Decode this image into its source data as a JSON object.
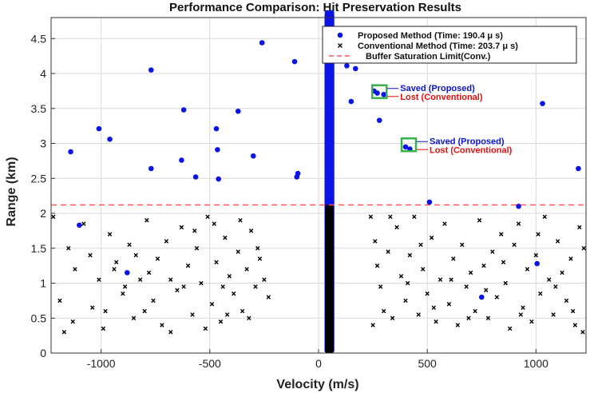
{
  "chart_data": {
    "type": "scatter",
    "title": "Performance Comparison: Hit Preservation Results",
    "xlabel": "Velocity (m/s)",
    "ylabel": "Range (km)",
    "xlim": [
      -1230,
      1230
    ],
    "ylim": [
      0,
      4.8
    ],
    "xticks": [
      -1000,
      -500,
      0,
      500,
      1000
    ],
    "yticks": [
      0,
      0.5,
      1,
      1.5,
      2,
      2.5,
      3,
      3.5,
      4,
      4.5
    ],
    "grid": true,
    "legend_position": "top-right",
    "colors": {
      "proposed": "#0a14e6",
      "conventional": "#000000",
      "limit": "#ff5a5a",
      "box": "#37b24d",
      "saved": "#0a14c8",
      "lost": "#e01010"
    },
    "series": [
      {
        "name": "Proposed Method (Time: 190.4 μ s)",
        "marker": "circle",
        "points": [
          [
            -1140,
            2.88
          ],
          [
            -1010,
            3.21
          ],
          [
            -960,
            3.06
          ],
          [
            -770,
            4.05
          ],
          [
            -770,
            2.64
          ],
          [
            -620,
            3.48
          ],
          [
            -630,
            2.76
          ],
          [
            -565,
            2.52
          ],
          [
            -470,
            3.21
          ],
          [
            -465,
            2.91
          ],
          [
            -460,
            2.49
          ],
          [
            -370,
            3.46
          ],
          [
            -300,
            2.82
          ],
          [
            -260,
            4.44
          ],
          [
            -110,
            4.17
          ],
          [
            -95,
            2.57
          ],
          [
            -100,
            2.52
          ],
          [
            40,
            4.87
          ],
          [
            60,
            4.87
          ],
          [
            130,
            4.11
          ],
          [
            170,
            4.07
          ],
          [
            150,
            3.6
          ],
          [
            255,
            3.75
          ],
          [
            270,
            3.72
          ],
          [
            300,
            3.7
          ],
          [
            280,
            3.33
          ],
          [
            400,
            2.95
          ],
          [
            420,
            2.92
          ],
          [
            510,
            2.16
          ],
          [
            920,
            2.1
          ],
          [
            1030,
            3.57
          ],
          [
            1195,
            2.64
          ],
          [
            -880,
            1.15
          ],
          [
            -1100,
            1.83
          ],
          [
            750,
            0.8
          ],
          [
            1005,
            1.28
          ]
        ]
      },
      {
        "name": "Conventional Method (Time: 203.7 μ s)",
        "marker": "x",
        "points": [
          [
            -1220,
            1.95
          ],
          [
            -1150,
            1.5
          ],
          [
            -1120,
            1.2
          ],
          [
            -1080,
            1.85
          ],
          [
            -1050,
            1.4
          ],
          [
            -1010,
            1.05
          ],
          [
            -980,
            0.6
          ],
          [
            -960,
            1.7
          ],
          [
            -930,
            1.3
          ],
          [
            -900,
            0.85
          ],
          [
            -870,
            1.55
          ],
          [
            -850,
            0.5
          ],
          [
            -820,
            1.05
          ],
          [
            -790,
            1.9
          ],
          [
            -760,
            0.75
          ],
          [
            -740,
            1.35
          ],
          [
            -720,
            0.4
          ],
          [
            -700,
            1.6
          ],
          [
            -680,
            1.05
          ],
          [
            -650,
            0.9
          ],
          [
            -630,
            1.8
          ],
          [
            -600,
            1.25
          ],
          [
            -580,
            0.55
          ],
          [
            -560,
            1.5
          ],
          [
            -540,
            1.0
          ],
          [
            -510,
            1.95
          ],
          [
            -490,
            0.7
          ],
          [
            -470,
            1.3
          ],
          [
            -450,
            0.45
          ],
          [
            -430,
            1.65
          ],
          [
            -410,
            1.1
          ],
          [
            -390,
            0.85
          ],
          [
            -370,
            1.45
          ],
          [
            -350,
            0.6
          ],
          [
            -330,
            1.2
          ],
          [
            -310,
            1.75
          ],
          [
            -290,
            0.95
          ],
          [
            -270,
            1.35
          ],
          [
            -250,
            1.05
          ],
          [
            -230,
            0.8
          ],
          [
            -1190,
            0.75
          ],
          [
            -1170,
            0.3
          ],
          [
            -1130,
            0.45
          ],
          [
            -1040,
            0.65
          ],
          [
            -990,
            0.35
          ],
          [
            -940,
            1.2
          ],
          [
            -890,
            0.95
          ],
          [
            -840,
            1.4
          ],
          [
            -800,
            0.6
          ],
          [
            -780,
            1.15
          ],
          [
            -680,
            0.3
          ],
          [
            -620,
            0.95
          ],
          [
            -570,
            1.75
          ],
          [
            -520,
            0.35
          ],
          [
            -480,
            1.85
          ],
          [
            -440,
            0.95
          ],
          [
            -420,
            0.55
          ],
          [
            -360,
            1.9
          ],
          [
            -320,
            0.5
          ],
          [
            -280,
            1.5
          ],
          [
            240,
            1.95
          ],
          [
            260,
            1.6
          ],
          [
            270,
            1.25
          ],
          [
            285,
            0.95
          ],
          [
            300,
            0.6
          ],
          [
            320,
            1.45
          ],
          [
            340,
            0.5
          ],
          [
            360,
            1.8
          ],
          [
            380,
            1.1
          ],
          [
            400,
            0.75
          ],
          [
            420,
            1.4
          ],
          [
            440,
            1.95
          ],
          [
            460,
            0.55
          ],
          [
            480,
            1.2
          ],
          [
            500,
            0.85
          ],
          [
            520,
            1.65
          ],
          [
            540,
            0.45
          ],
          [
            560,
            1.05
          ],
          [
            580,
            1.85
          ],
          [
            600,
            0.7
          ],
          [
            620,
            1.35
          ],
          [
            640,
            0.4
          ],
          [
            660,
            1.55
          ],
          [
            680,
            0.95
          ],
          [
            700,
            1.15
          ],
          [
            720,
            0.6
          ],
          [
            740,
            1.9
          ],
          [
            760,
            1.25
          ],
          [
            780,
            0.5
          ],
          [
            800,
            1.45
          ],
          [
            820,
            0.8
          ],
          [
            840,
            1.7
          ],
          [
            860,
            1.0
          ],
          [
            880,
            0.35
          ],
          [
            900,
            1.55
          ],
          [
            920,
            1.85
          ],
          [
            940,
            0.65
          ],
          [
            960,
            1.2
          ],
          [
            980,
            0.45
          ],
          [
            1000,
            1.4
          ],
          [
            1020,
            0.85
          ],
          [
            1040,
            1.95
          ],
          [
            1060,
            1.05
          ],
          [
            1080,
            0.55
          ],
          [
            1100,
            1.6
          ],
          [
            1120,
            1.15
          ],
          [
            1140,
            0.75
          ],
          [
            1160,
            1.35
          ],
          [
            1180,
            0.4
          ],
          [
            1200,
            1.8
          ],
          [
            1220,
            1.5
          ],
          [
            250,
            0.4
          ],
          [
            330,
            1.95
          ],
          [
            410,
            1.0
          ],
          [
            470,
            1.55
          ],
          [
            530,
            0.65
          ],
          [
            610,
            1.05
          ],
          [
            690,
            0.5
          ],
          [
            770,
            0.9
          ],
          [
            850,
            1.3
          ],
          [
            930,
            0.55
          ],
          [
            1010,
            1.7
          ],
          [
            1090,
            0.95
          ],
          [
            1170,
            0.6
          ],
          [
            1215,
            0.3
          ]
        ]
      },
      {
        "name": "Buffer Saturation Limit(Conv.)",
        "marker": "dashed-line",
        "y": 2.12
      }
    ],
    "bands": [
      {
        "series": "proposed",
        "x": 50,
        "width": 45,
        "y_from": 0,
        "y_to": 4.87
      },
      {
        "series": "conventional",
        "x": 50,
        "width": 40,
        "y_from": 0,
        "y_to": 2.12
      }
    ],
    "annotations": [
      {
        "x": 280,
        "y": 3.74,
        "saved": "Saved (Proposed)",
        "lost": "Lost (Conventional)"
      },
      {
        "x": 415,
        "y": 2.98,
        "saved": "Saved (Proposed)",
        "lost": "Lost (Conventional)"
      }
    ]
  }
}
